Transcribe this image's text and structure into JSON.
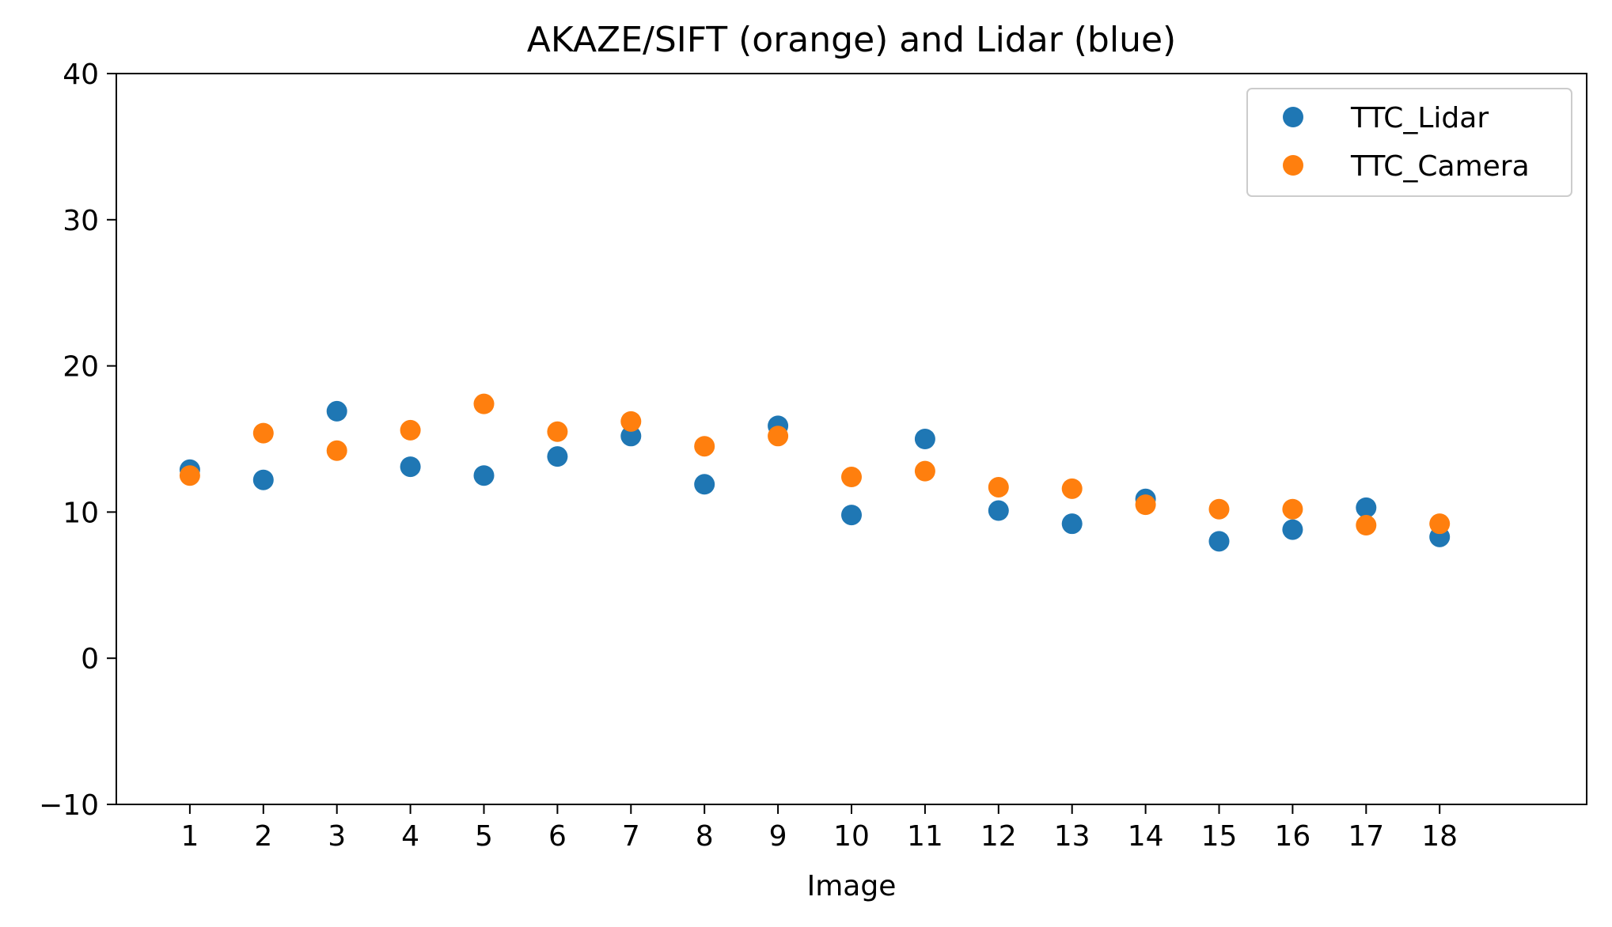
{
  "chart_data": {
    "type": "scatter",
    "title": "AKAZE/SIFT (orange) and Lidar (blue)",
    "xlabel": "Image",
    "ylabel": "",
    "x": [
      1,
      2,
      3,
      4,
      5,
      6,
      7,
      8,
      9,
      10,
      11,
      12,
      13,
      14,
      15,
      16,
      17,
      18
    ],
    "xticks": [
      "1",
      "2",
      "3",
      "4",
      "5",
      "6",
      "7",
      "8",
      "9",
      "10",
      "11",
      "12",
      "13",
      "14",
      "15",
      "16",
      "17",
      "18"
    ],
    "xlim": [
      0,
      20
    ],
    "ylim": [
      -10,
      40
    ],
    "yticks": [
      "−10",
      "0",
      "10",
      "20",
      "30",
      "40"
    ],
    "grid": false,
    "legend_position": "top-right",
    "series": [
      {
        "name": "TTC_Lidar",
        "color": "#1f77b4",
        "values": [
          12.9,
          12.2,
          16.9,
          13.1,
          12.5,
          13.8,
          15.2,
          11.9,
          15.9,
          9.8,
          15.0,
          10.1,
          9.2,
          10.9,
          8.0,
          8.8,
          10.3,
          8.3
        ]
      },
      {
        "name": "TTC_Camera",
        "color": "#ff7f0e",
        "values": [
          12.5,
          15.4,
          14.2,
          15.6,
          17.4,
          15.5,
          16.2,
          14.5,
          15.2,
          12.4,
          12.8,
          11.7,
          11.6,
          10.5,
          10.2,
          10.2,
          9.1,
          9.2
        ]
      }
    ]
  }
}
